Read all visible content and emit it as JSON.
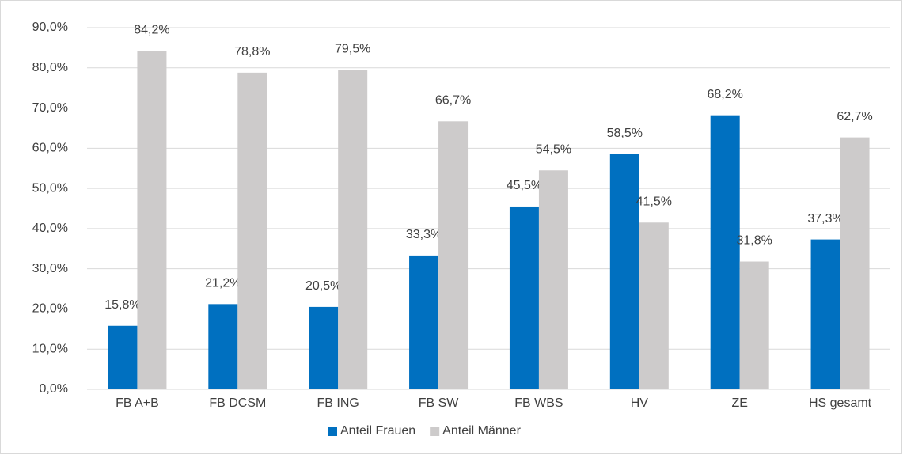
{
  "chart_data": {
    "type": "bar",
    "categories": [
      "FB A+B",
      "FB DCSM",
      "FB ING",
      "FB SW",
      "FB WBS",
      "HV",
      "ZE",
      "HS gesamt"
    ],
    "series": [
      {
        "name": "Anteil Frauen",
        "color": "#0070c0",
        "values": [
          15.8,
          21.2,
          20.5,
          33.3,
          45.5,
          58.5,
          68.2,
          37.3
        ],
        "value_labels": [
          "15,8%",
          "21,2%",
          "20,5%",
          "33,3%",
          "45,5%",
          "58,5%",
          "68,2%",
          "37,3%"
        ]
      },
      {
        "name": "Anteil Männer",
        "color": "#cdcbcb",
        "values": [
          84.2,
          78.8,
          79.5,
          66.7,
          54.5,
          41.5,
          31.8,
          62.7
        ],
        "value_labels": [
          "84,2%",
          "78,8%",
          "79,5%",
          "66,7%",
          "54,5%",
          "41,5%",
          "31,8%",
          "62,7%"
        ]
      }
    ],
    "ylim": [
      0,
      90
    ],
    "yticks": [
      {
        "value": 0,
        "label": "0,0%"
      },
      {
        "value": 10,
        "label": "10,0%"
      },
      {
        "value": 20,
        "label": "20,0%"
      },
      {
        "value": 30,
        "label": "30,0%"
      },
      {
        "value": 40,
        "label": "40,0%"
      },
      {
        "value": 50,
        "label": "50,0%"
      },
      {
        "value": 60,
        "label": "60,0%"
      },
      {
        "value": 70,
        "label": "70,0%"
      },
      {
        "value": 80,
        "label": "80,0%"
      },
      {
        "value": 90,
        "label": "90,0%"
      }
    ],
    "grid": true,
    "legend": "bottom"
  }
}
